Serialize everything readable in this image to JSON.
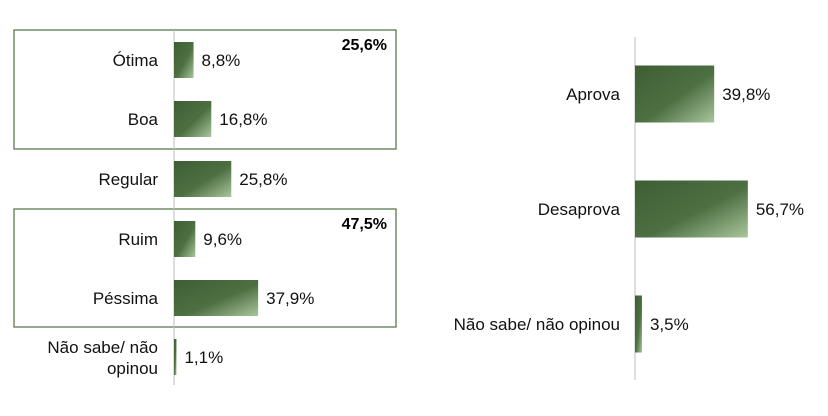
{
  "chart_data": [
    {
      "type": "bar",
      "orientation": "horizontal",
      "categories": [
        "Ótima",
        "Boa",
        "Regular",
        "Ruim",
        "Péssima",
        "Não sabe/ não opinou"
      ],
      "values": [
        8.8,
        16.8,
        25.8,
        9.6,
        37.9,
        1.1
      ],
      "value_labels": [
        "8,8%",
        "16,8%",
        "25,8%",
        "9,6%",
        "37,9%",
        "1,1%"
      ],
      "groups": [
        {
          "categories": [
            "Ótima",
            "Boa"
          ],
          "total_label": "25,6%"
        },
        {
          "categories": [
            "Ruim",
            "Péssima"
          ],
          "total_label": "47,5%"
        }
      ],
      "color": "#4a6b3f"
    },
    {
      "type": "bar",
      "orientation": "horizontal",
      "categories": [
        "Aprova",
        "Desaprova",
        "Não sabe/ não opinou"
      ],
      "values": [
        39.8,
        56.7,
        3.5
      ],
      "value_labels": [
        "39,8%",
        "56,7%",
        "3,5%"
      ],
      "color": "#4a6b3f"
    }
  ]
}
